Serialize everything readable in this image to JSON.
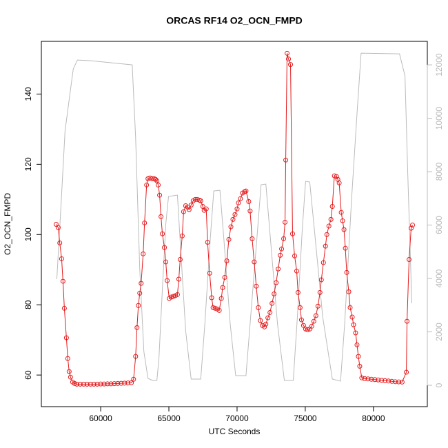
{
  "chart_data": {
    "type": "line",
    "title": "ORCAS RF14 O2_OCN_FMPD",
    "xlabel": "UTC Seconds",
    "ylabel": "O2_OCN_FMPD",
    "xlim": [
      55650,
      83950
    ],
    "xticks": [
      60000,
      65000,
      70000,
      75000,
      80000
    ],
    "ylim": [
      51,
      155
    ],
    "yticks": [
      60,
      80,
      100,
      120,
      140
    ],
    "y2lim": [
      -800,
      12880
    ],
    "y2ticks": [
      0,
      2000,
      4000,
      6000,
      8000,
      10000,
      12000
    ],
    "series": [
      {
        "color": "#e41a1c",
        "marker": "circle",
        "axis": "y",
        "x": [
          56733,
          56884,
          57000,
          57136,
          57236,
          57337,
          57487,
          57588,
          57688,
          57789,
          57940,
          58090,
          58250,
          58500,
          58750,
          59000,
          59250,
          59500,
          59750,
          60000,
          60250,
          60500,
          60750,
          61000,
          61250,
          61500,
          61750,
          62000,
          62250,
          62412,
          62563,
          62663,
          62764,
          62864,
          62965,
          63116,
          63216,
          63367,
          63467,
          63618,
          63769,
          63920,
          64020,
          64121,
          64221,
          64322,
          64422,
          64523,
          64673,
          64774,
          64874,
          65025,
          65176,
          65327,
          65477,
          65628,
          65729,
          65829,
          65980,
          66080,
          66231,
          66382,
          66482,
          66633,
          66784,
          66935,
          67085,
          67236,
          67337,
          67487,
          67588,
          67739,
          67839,
          67990,
          68141,
          68241,
          68392,
          68543,
          68693,
          68844,
          68945,
          69095,
          69246,
          69397,
          69548,
          69698,
          69849,
          70000,
          70101,
          70251,
          70402,
          70553,
          70653,
          70854,
          70955,
          71106,
          71256,
          71407,
          71558,
          71709,
          71859,
          72010,
          72111,
          72261,
          72412,
          72563,
          72714,
          72864,
          73015,
          73166,
          73266,
          73417,
          73518,
          73568,
          73668,
          73769,
          73920,
          74070,
          74221,
          74372,
          74472,
          74623,
          74724,
          74874,
          75025,
          75176,
          75327,
          75477,
          75628,
          75779,
          75930,
          76080,
          76181,
          76332,
          76482,
          76583,
          76734,
          76884,
          76985,
          77136,
          77286,
          77387,
          77487,
          77638,
          77739,
          77839,
          77940,
          78040,
          78191,
          78291,
          78442,
          78543,
          78693,
          78794,
          78894,
          78995,
          79146,
          79350,
          79600,
          79850,
          80100,
          80350,
          80600,
          80850,
          81100,
          81350,
          81600,
          81850,
          82100,
          82412,
          82462,
          82613,
          82764,
          82864
        ],
        "values": [
          102.9,
          102,
          97.6,
          93.1,
          86.7,
          79,
          70.6,
          64.7,
          61,
          59.4,
          58,
          57.6,
          57.4,
          57.4,
          57.4,
          57.4,
          57.4,
          57.4,
          57.4,
          57.45,
          57.45,
          57.5,
          57.5,
          57.55,
          57.6,
          57.65,
          57.7,
          57.75,
          57.8,
          58.8,
          65.3,
          73.5,
          79.8,
          83.3,
          86.1,
          94.5,
          103.3,
          114.1,
          115.9,
          116.1,
          115.9,
          115.9,
          115.7,
          115.3,
          114.1,
          111.2,
          105.1,
          100.2,
          96.3,
          92.2,
          86.9,
          81.8,
          82.2,
          82.4,
          82.6,
          82.9,
          87.3,
          92.9,
          99.6,
          106.5,
          108.2,
          107.8,
          107.1,
          108.4,
          109.6,
          110,
          110,
          109.8,
          109.6,
          108,
          106.9,
          107.3,
          97.8,
          89,
          82,
          79.2,
          79,
          78.8,
          78.4,
          81.8,
          84.9,
          87.8,
          92.5,
          98.6,
          102.2,
          104.3,
          105.7,
          107.3,
          109,
          110.2,
          111.8,
          112.2,
          112.4,
          109.4,
          106.7,
          98.8,
          92.2,
          85.3,
          79.2,
          75.5,
          74.1,
          73.7,
          74.5,
          76.3,
          77.8,
          80.4,
          83.1,
          86.3,
          90.2,
          94.1,
          95.9,
          98.8,
          103.5,
          121.2,
          151.6,
          150,
          148.4,
          100.2,
          93.9,
          89.6,
          83.5,
          79.2,
          75.7,
          74.1,
          73.1,
          72.9,
          73.1,
          73.9,
          75.3,
          76.9,
          79.6,
          83.5,
          87.1,
          92,
          96.7,
          100,
          102.4,
          104.3,
          108,
          116.7,
          116.5,
          115.7,
          114.7,
          106.3,
          103.9,
          101.4,
          96.1,
          89.2,
          83.7,
          79.2,
          76.5,
          74.3,
          72,
          68.6,
          65.3,
          62.5,
          59.2,
          59,
          58.9,
          58.8,
          58.7,
          58.6,
          58.5,
          58.4,
          58.3,
          58.2,
          58.1,
          58.05,
          58,
          60.8,
          75.3,
          92.9,
          101.8,
          102.7
        ]
      },
      {
        "color": "#bbbbbb",
        "axis": "y2",
        "x": [
          56784,
          57085,
          57387,
          57739,
          57990,
          58291,
          59296,
          60301,
          61307,
          62312,
          62563,
          62864,
          63166,
          63467,
          63819,
          64121,
          64271,
          64523,
          64774,
          64975,
          65628,
          65829,
          66231,
          66633,
          67337,
          67638,
          68040,
          68291,
          68744,
          69045,
          69497,
          69899,
          70653,
          70955,
          71457,
          71759,
          72111,
          72462,
          72965,
          73467,
          74121,
          74422,
          74774,
          75025,
          75327,
          75678,
          76281,
          76985,
          77588,
          77889,
          78392,
          78794,
          79095,
          81910,
          82312,
          82513,
          82814
        ],
        "values": [
          3974,
          6684,
          9523,
          10890,
          11845,
          12181,
          12155,
          12103,
          12052,
          12000,
          9265,
          4361,
          1265,
          258,
          181,
          181,
          1006,
          3587,
          6039,
          7071,
          7123,
          5394,
          2039,
          232,
          232,
          2297,
          5523,
          7277,
          7303,
          5394,
          2297,
          361,
          361,
          2297,
          5523,
          7510,
          7535,
          5394,
          2297,
          181,
          181,
          2555,
          5781,
          7639,
          7613,
          5781,
          2555,
          232,
          155,
          2297,
          6942,
          10168,
          12439,
          12413,
          11587,
          7974,
          3071
        ]
      }
    ]
  }
}
